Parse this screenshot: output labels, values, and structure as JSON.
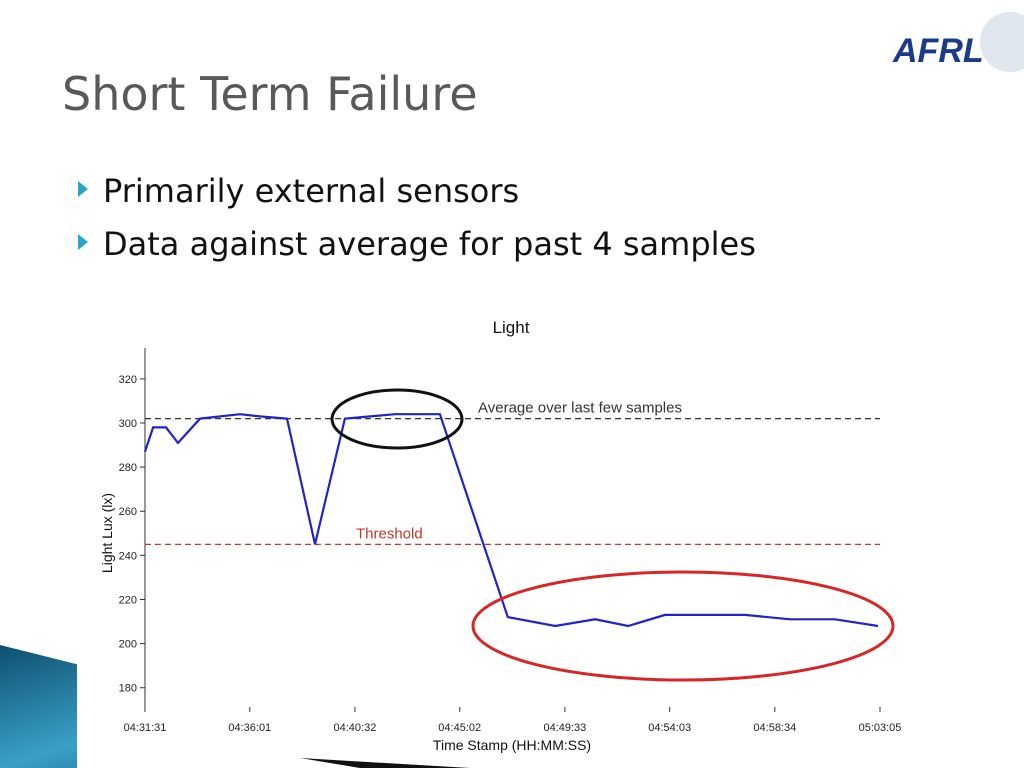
{
  "slide": {
    "title": "Short Term Failure",
    "bullets": [
      "Primarily external sensors",
      "Data against average for past 4 samples"
    ],
    "logo": "AFRL"
  },
  "chart_data": {
    "type": "line",
    "title": "Light",
    "x_label": "Time Stamp (HH:MM:SS)",
    "y_label": "Light Lux (lx)",
    "x": [
      "04:31:31",
      "04:31:52",
      "04:32:25",
      "04:32:56",
      "04:33:53",
      "04:35:36",
      "04:36:27",
      "04:37:37",
      "04:38:49",
      "04:40:06",
      "04:41:11",
      "04:42:15",
      "04:44:11",
      "04:47:06",
      "04:49:08",
      "04:50:51",
      "04:52:16",
      "04:53:51",
      "04:55:21",
      "04:57:17",
      "04:59:13",
      "05:01:09",
      "05:03:00"
    ],
    "values": [
      287,
      298,
      298,
      291,
      302,
      304,
      303,
      302,
      245,
      302,
      303,
      304,
      304,
      212,
      208,
      211,
      208,
      213,
      213,
      213,
      211,
      211,
      208
    ],
    "color": "#2222c8",
    "xlim": [
      "04:31:31",
      "05:03:05"
    ],
    "xticks": [
      "04:31:31",
      "04:36:01",
      "04:40:32",
      "04:45:02",
      "04:49:33",
      "04:54:03",
      "04:58:34",
      "05:03:05"
    ],
    "ylim": [
      169,
      334
    ],
    "yticks": [
      180,
      200,
      220,
      240,
      260,
      280,
      300,
      320
    ],
    "reference_lines": [
      {
        "value": 302,
        "label": "Average over last few samples",
        "color": "#333333"
      },
      {
        "value": 245,
        "label": "Threshold",
        "color": "#c0392b"
      }
    ]
  }
}
